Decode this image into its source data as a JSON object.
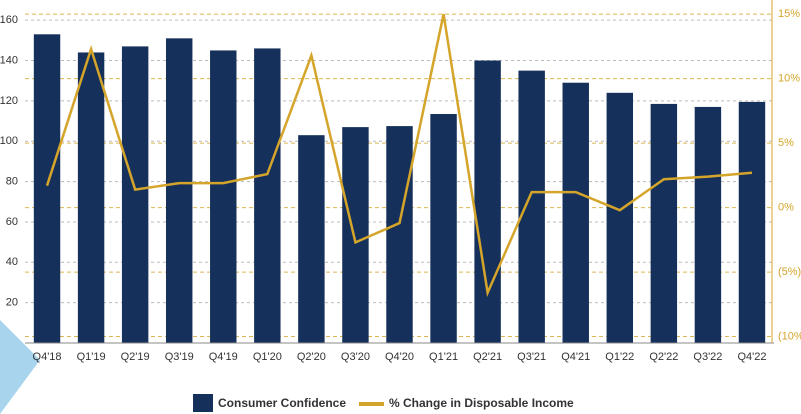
{
  "chart_data": {
    "type": "bar_line",
    "categories": [
      "Q4'18",
      "Q1'19",
      "Q2'19",
      "Q3'19",
      "Q4'19",
      "Q1'20",
      "Q2'20",
      "Q3'20",
      "Q4'20",
      "Q1'21",
      "Q2'21",
      "Q3'21",
      "Q4'21",
      "Q1'22",
      "Q2'22",
      "Q3'22",
      "Q4'22"
    ],
    "series": [
      {
        "name": "Consumer Confidence",
        "color": "#15305a",
        "type": "bar",
        "values": [
          153,
          144,
          147,
          151,
          145,
          146,
          103,
          107,
          107.5,
          113.5,
          140,
          135,
          129,
          124,
          118.5,
          117,
          119.5
        ]
      },
      {
        "name": "% Change in Disposable Income",
        "color": "#d4a52a",
        "type": "line",
        "axis": "y2",
        "values": [
          1.7,
          12.3,
          1.4,
          1.9,
          1.9,
          2.6,
          11.8,
          -2.7,
          -1.2,
          15.0,
          -6.6,
          1.2,
          1.2,
          -0.2,
          2.2,
          2.4,
          2.7
        ]
      }
    ],
    "ylim": [
      0,
      170
    ],
    "yticks": [
      20,
      40,
      60,
      80,
      100,
      120,
      140,
      160
    ],
    "y2lim": [
      -10.5,
      16.1
    ],
    "y2ticks": [
      {
        "value": 15,
        "label": "15%"
      },
      {
        "value": 10,
        "label": "10%"
      },
      {
        "value": 5,
        "label": "5%"
      },
      {
        "value": 0,
        "label": "0%"
      },
      {
        "value": -5,
        "label": "(5%)"
      },
      {
        "value": -10,
        "label": "(10%)"
      }
    ],
    "grid": true
  }
}
